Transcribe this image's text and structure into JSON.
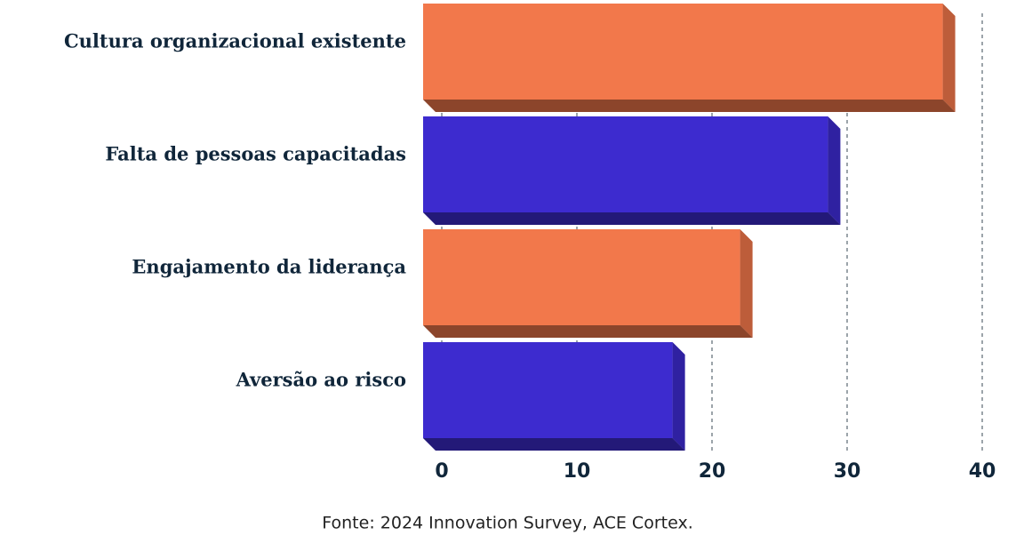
{
  "chart_data": {
    "type": "bar",
    "orientation": "horizontal",
    "categories": [
      "Cultura organizacional existente",
      "Falta de pessoas capacitadas",
      "Engajamento da liderança",
      "Aversão ao risco"
    ],
    "values": [
      38,
      29.5,
      23,
      18
    ],
    "colors": [
      "#f2784b",
      "#3d2bcf",
      "#f2784b",
      "#3d2bcf"
    ],
    "xlim": [
      0,
      40
    ],
    "xticks": [
      0,
      10,
      20,
      30,
      40
    ],
    "grid": true,
    "source": "Fonte: 2024 Innovation Survey, ACE Cortex."
  }
}
